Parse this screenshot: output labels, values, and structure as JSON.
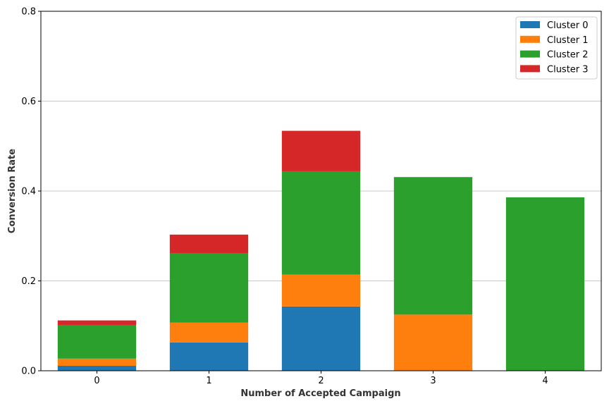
{
  "chart_data": {
    "type": "bar",
    "stacked": true,
    "title": "",
    "xlabel": "Number of Accepted Campaign",
    "ylabel": "Conversion Rate",
    "categories": [
      "0",
      "1",
      "2",
      "3",
      "4"
    ],
    "ylim": [
      0,
      0.8
    ],
    "yticks": [
      0.0,
      0.2,
      0.4,
      0.6,
      0.8
    ],
    "ytick_labels": [
      "0.0",
      "0.2",
      "0.4",
      "0.6",
      "0.8"
    ],
    "grid": "y",
    "legend_position": "top-right",
    "series": [
      {
        "name": "Cluster 0",
        "color": "#1f77b4",
        "values": [
          0.011,
          0.063,
          0.143,
          0.0,
          0.0
        ]
      },
      {
        "name": "Cluster 1",
        "color": "#ff7f0e",
        "values": [
          0.016,
          0.044,
          0.071,
          0.125,
          0.0
        ]
      },
      {
        "name": "Cluster 2",
        "color": "#2ca02c",
        "values": [
          0.075,
          0.155,
          0.23,
          0.306,
          0.386
        ]
      },
      {
        "name": "Cluster 3",
        "color": "#d62728",
        "values": [
          0.01,
          0.041,
          0.09,
          0.0,
          0.0
        ]
      }
    ]
  }
}
